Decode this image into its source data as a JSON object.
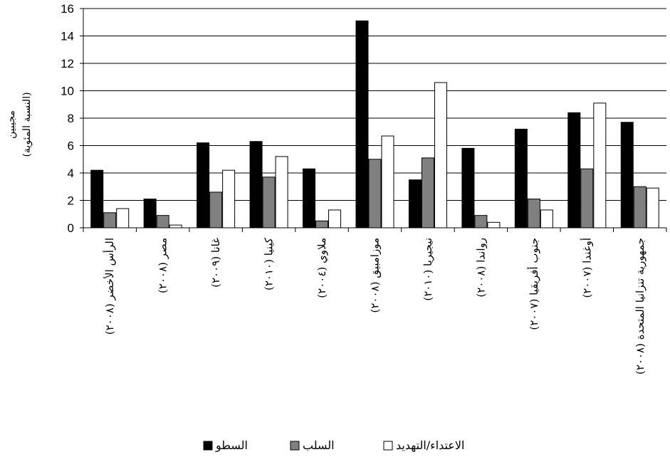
{
  "chart_data": {
    "type": "bar",
    "ylabel_line1": "مجيبين",
    "ylabel_line2": "(النسبة المئوية)",
    "ylim": [
      0,
      16
    ],
    "yticks": [
      "0",
      "2",
      "4",
      "6",
      "8",
      "10",
      "12",
      "14",
      "16"
    ],
    "grid": true,
    "legend_position": "bottom-center",
    "categories": [
      "الرأس الأخضر (٢٠٠٨)",
      "مصر (٢٠٠٨)",
      "غانا (٢٠٠٩)",
      "كينيا (٢٠١٠)",
      "ملاوي (٢٠٠٤)",
      "موزامبيق (٢٠٠٨)",
      "نيجيريا (٢٠١٠)",
      "رواندا (٢٠٠٨)",
      "جنوب أفريقيا (٢٠٠٧)",
      "أوغندا (٢٠٠٧)",
      "جمهورية تنزانيا المتحدة (٢٠٠٨)"
    ],
    "series": [
      {
        "name": "السطو",
        "color": "#000000",
        "values": [
          4.2,
          2.1,
          6.2,
          6.3,
          4.3,
          15.1,
          3.5,
          5.8,
          7.2,
          8.4,
          7.7
        ]
      },
      {
        "name": "السلب",
        "color": "#808080",
        "values": [
          1.1,
          0.9,
          2.6,
          3.7,
          0.5,
          5.0,
          5.1,
          0.9,
          2.1,
          4.3,
          3.0
        ]
      },
      {
        "name": "الاعتداء/التهديد",
        "color": "#ffffff",
        "values": [
          1.4,
          0.2,
          4.2,
          5.2,
          1.3,
          6.7,
          10.6,
          0.4,
          1.3,
          9.1,
          2.9
        ]
      }
    ]
  }
}
